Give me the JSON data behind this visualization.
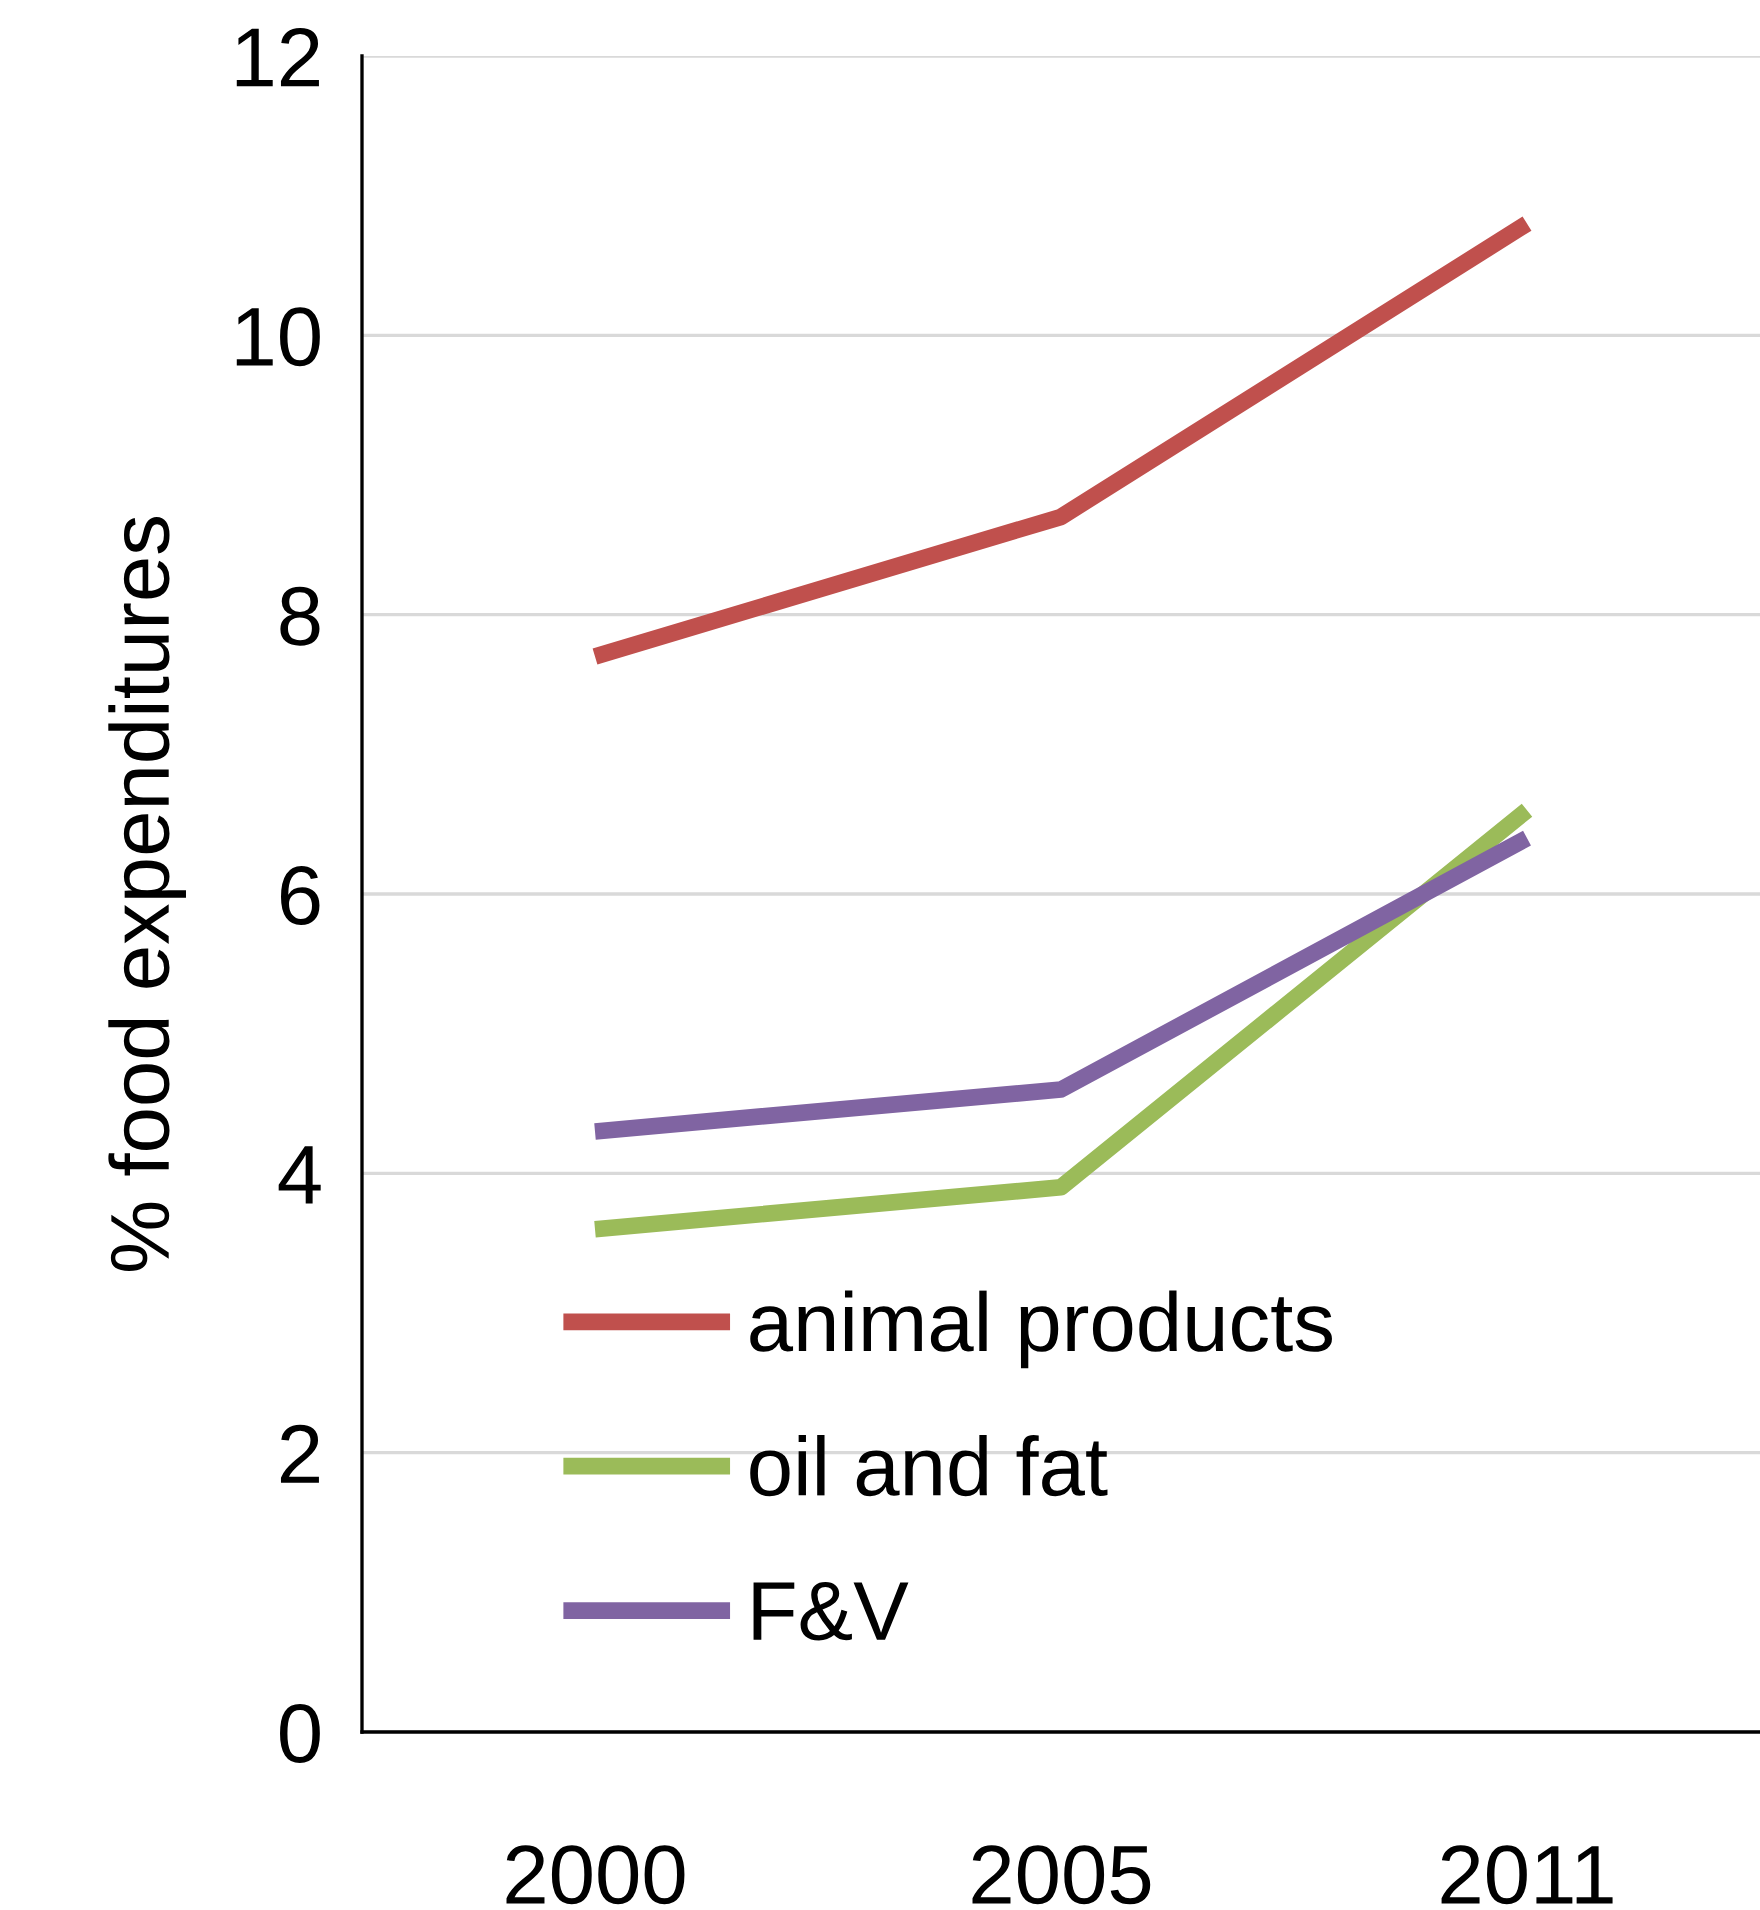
{
  "chart_data": {
    "type": "line",
    "ylabel": "% food expenditures",
    "categories": [
      "2000",
      "2005",
      "2011"
    ],
    "series": [
      {
        "name": "animal products",
        "color": "#c0504d",
        "values": [
          7.7,
          8.7,
          10.8
        ]
      },
      {
        "name": "oil and fat",
        "color": "#9bbb59",
        "values": [
          3.6,
          3.9,
          6.6
        ]
      },
      {
        "name": "F&V",
        "color": "#8064a2",
        "values": [
          4.3,
          4.6,
          6.4
        ]
      }
    ],
    "ylim": [
      0,
      12
    ],
    "yticks": [
      0,
      2,
      4,
      6,
      8,
      10,
      12
    ],
    "grid": "y",
    "legend": "bottom",
    "marker": "none",
    "line_style": "solid"
  }
}
